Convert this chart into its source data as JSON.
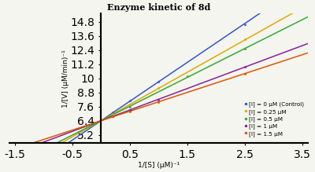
{
  "title": "Enzyme kinetic of 8d",
  "xlabel": "1/[S] (μM)⁻¹",
  "ylabel": "1/[V] (μM/min)⁻¹",
  "xlim": [
    -1.6,
    3.6
  ],
  "ylim": [
    4.5,
    15.5
  ],
  "xticks": [
    -1.5,
    -0.5,
    0.5,
    1.5,
    2.5,
    3.5
  ],
  "xtick_labels": [
    "-1.5",
    "-0.5",
    "0.5",
    "1.5",
    "2.5",
    "3.5"
  ],
  "yticks": [
    5.2,
    6.4,
    7.6,
    8.8,
    10.0,
    11.2,
    12.4,
    13.6,
    14.8
  ],
  "ytick_labels": [
    "5.2",
    "6.4",
    "7.6",
    "8.8",
    "10",
    "11.2",
    "12.4",
    "13.6",
    "14.8"
  ],
  "series": [
    {
      "label": "[I] = 0 μM (Control)",
      "color": "#3355CC",
      "slope": 3.3,
      "intercept": 6.4,
      "scatter_x": [
        0.2,
        0.5,
        1.0,
        2.5
      ],
      "scatter_y": [
        7.1,
        8.1,
        9.7,
        14.6
      ]
    },
    {
      "label": "[I] = 0.25 μM",
      "color": "#DDAA00",
      "slope": 2.74,
      "intercept": 6.4,
      "scatter_x": [
        0.2,
        0.5,
        1.0,
        2.5
      ],
      "scatter_y": [
        7.0,
        7.8,
        9.2,
        13.3
      ]
    },
    {
      "label": "[I] = 0.5 μM",
      "color": "#33AA33",
      "slope": 2.45,
      "intercept": 6.4,
      "scatter_x": [
        -0.1,
        0.5,
        1.5,
        2.5
      ],
      "scatter_y": [
        6.2,
        7.6,
        10.2,
        12.5
      ]
    },
    {
      "label": "[I] = 1 μM",
      "color": "#882299",
      "slope": 1.82,
      "intercept": 6.4,
      "scatter_x": [
        0.2,
        0.5,
        1.0,
        2.5
      ],
      "scatter_y": [
        6.8,
        7.3,
        8.2,
        10.95
      ]
    },
    {
      "label": "[I] = 1.5 μM",
      "color": "#DD5500",
      "slope": 1.6,
      "intercept": 6.4,
      "scatter_x": [
        0.2,
        0.5,
        1.0,
        2.5
      ],
      "scatter_y": [
        6.75,
        7.2,
        8.0,
        10.4
      ]
    }
  ],
  "line_x_start": -1.6,
  "line_x_end": 3.6,
  "bg_color": "#F5F5F0",
  "legend_labels": [
    "[I] = 0 μM (Control)",
    "[I] = 0.25 μM",
    "[I] = 0.5 μM",
    "[I] = 1 μM",
    "[I] = 1.5 μM"
  ],
  "legend_colors": [
    "#3355CC",
    "#DDAA00",
    "#33AA33",
    "#882299",
    "#DD5500"
  ]
}
